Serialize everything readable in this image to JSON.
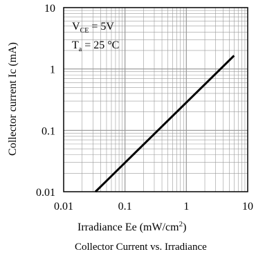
{
  "chart_data": {
    "type": "line",
    "xscale": "log",
    "yscale": "log",
    "xlim": [
      0.01,
      10
    ],
    "ylim": [
      0.01,
      10
    ],
    "x_ticks": [
      "0.01",
      "0.1",
      "1",
      "10"
    ],
    "y_ticks": [
      "0.01",
      "0.1",
      "1",
      "10"
    ],
    "grid": true,
    "xlabel": {
      "main": "Irradiance Ee (mW/cm",
      "sup": "2",
      "tail": ")"
    },
    "ylabel": "Collector current Ic (mA)",
    "annotations": {
      "vce": {
        "main": "V",
        "sub": "CE",
        "tail": " = 5V"
      },
      "ta": {
        "main": "T",
        "sub": "a",
        "tail": " = 25 °C"
      }
    },
    "series": [
      {
        "x": [
          0.033,
          6.0
        ],
        "y": [
          0.01,
          1.65
        ],
        "color": "#000000"
      }
    ],
    "caption": "Collector  Current vs. Irradiance"
  }
}
